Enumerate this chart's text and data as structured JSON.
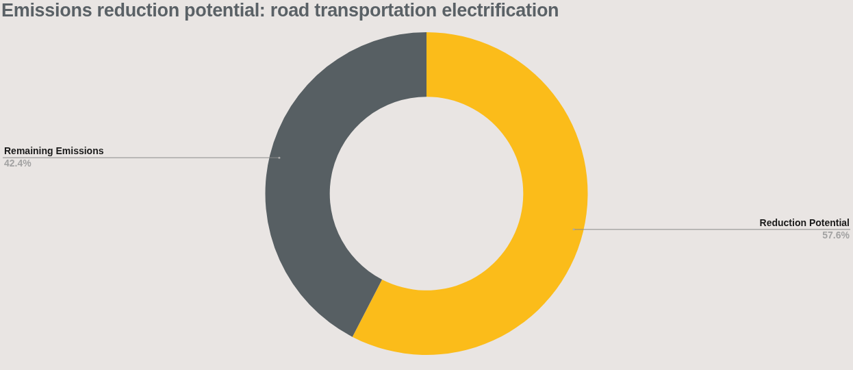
{
  "chart_data": {
    "type": "donut",
    "title": "Emissions reduction potential: road transportation electrification",
    "categories": [
      "Reduction Potential",
      "Remaining Emissions"
    ],
    "values": [
      57.6,
      42.4
    ],
    "colors": [
      "#fbbc1a",
      "#575f63"
    ],
    "value_labels": [
      "57.6%",
      "42.4%"
    ],
    "legend": false
  }
}
